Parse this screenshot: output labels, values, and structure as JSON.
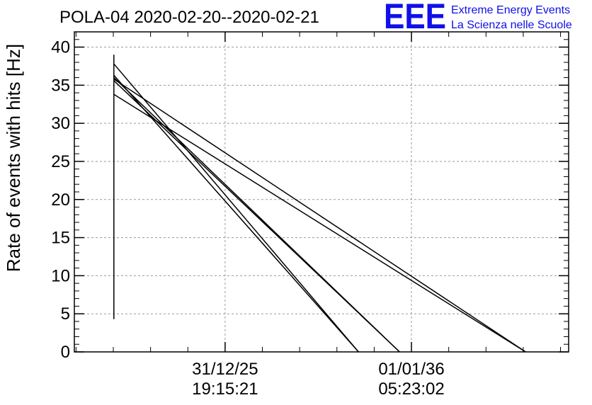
{
  "chart_data": {
    "type": "line",
    "title": "POLA-04 2020-02-20--2020-02-21",
    "xlabel": "",
    "ylabel": "Rate of events with hits [Hz]",
    "ylim": [
      0,
      42
    ],
    "yticks": [
      0,
      5,
      10,
      15,
      20,
      25,
      30,
      35,
      40
    ],
    "xlim": [
      0,
      1
    ],
    "xticks": [
      {
        "x": 0.305,
        "line1": "31/12/25",
        "line2": "19:15:21"
      },
      {
        "x": 0.682,
        "line1": "01/01/36",
        "line2": "05:23:02"
      }
    ],
    "grid": true,
    "legend": "none",
    "line_color": "#000000",
    "series": [
      {
        "x": [
          0.08,
          0.08
        ],
        "y": [
          39.0,
          4.3
        ]
      },
      {
        "x": [
          0.08,
          0.575
        ],
        "y": [
          37.8,
          0.0
        ]
      },
      {
        "x": [
          0.08,
          0.575
        ],
        "y": [
          36.3,
          0.0
        ]
      },
      {
        "x": [
          0.08,
          0.658
        ],
        "y": [
          36.0,
          0.0
        ]
      },
      {
        "x": [
          0.08,
          0.658
        ],
        "y": [
          35.6,
          0.0
        ]
      },
      {
        "x": [
          0.08,
          0.913
        ],
        "y": [
          35.8,
          0.0
        ]
      },
      {
        "x": [
          0.08,
          0.913
        ],
        "y": [
          33.8,
          0.0
        ]
      }
    ]
  },
  "logo": {
    "mark": "EEE",
    "line1": "Extreme Energy Events",
    "line2": "La Scienza nelle Scuole",
    "color": "#1010e8"
  }
}
